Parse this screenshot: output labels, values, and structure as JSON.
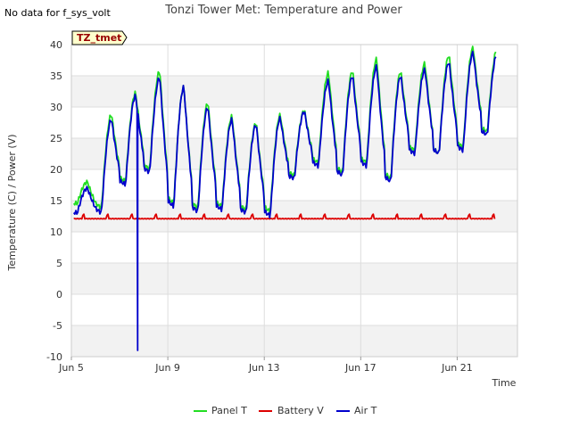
{
  "chart_data": {
    "type": "line",
    "title": "Tonzi Tower Met: Temperature and Power",
    "no_data_note": "No data for f_sys_volt",
    "site_tag": "TZ_tmet",
    "xlabel": "Time",
    "ylabel": "Temperature (C) / Power (V)",
    "ylim": [
      -10,
      40
    ],
    "xlim": [
      5.0,
      23.5
    ],
    "x_unit": "day of June",
    "y_ticks": [
      -10,
      -5,
      0,
      5,
      10,
      15,
      20,
      25,
      30,
      35,
      40
    ],
    "y_tick_labels": [
      "-10",
      "-5",
      "0",
      "5",
      "10",
      "15",
      "20",
      "25",
      "30",
      "35",
      "40"
    ],
    "x_ticks": [
      5,
      9,
      13,
      17,
      21
    ],
    "x_tick_labels": [
      "Jun 5",
      "Jun 9",
      "Jun 13",
      "Jun 17",
      "Jun 21"
    ],
    "legend_position": "bottom-center",
    "daily_extremes": {
      "days": [
        5,
        6,
        7,
        8,
        9,
        10,
        11,
        12,
        13,
        14,
        15,
        16,
        17,
        18,
        19,
        20,
        21,
        22
      ],
      "panel_max": [
        18.0,
        28.8,
        32.3,
        35.8,
        33.2,
        30.7,
        28.5,
        27.5,
        28.7,
        29.5,
        35.5,
        35.8,
        37.7,
        35.7,
        37.0,
        38.3,
        39.5,
        39.3
      ],
      "panel_min": [
        14.5,
        13.8,
        18.0,
        20.0,
        14.5,
        13.8,
        14.0,
        13.5,
        13.2,
        19.0,
        21.0,
        19.5,
        21.0,
        18.5,
        23.0,
        22.5,
        23.5,
        26.0
      ],
      "air_max": [
        17.0,
        28.0,
        31.8,
        34.8,
        33.2,
        30.0,
        28.0,
        27.2,
        28.2,
        29.3,
        34.2,
        35.0,
        36.5,
        35.0,
        36.0,
        37.2,
        38.7,
        38.5
      ],
      "air_min": [
        13.0,
        13.0,
        17.5,
        19.5,
        14.0,
        13.2,
        13.5,
        13.0,
        12.5,
        18.5,
        20.5,
        19.0,
        20.5,
        18.0,
        22.5,
        22.5,
        23.0,
        25.5
      ],
      "air_spike_day": 7.75,
      "air_spike_min": -9.0,
      "battery_base": 12.1,
      "battery_daily_peak": 13.0
    },
    "series": [
      {
        "name": "Panel T",
        "color": "#22dd22"
      },
      {
        "name": "Battery V",
        "color": "#dd0000"
      },
      {
        "name": "Air T",
        "color": "#0000cc"
      }
    ]
  }
}
